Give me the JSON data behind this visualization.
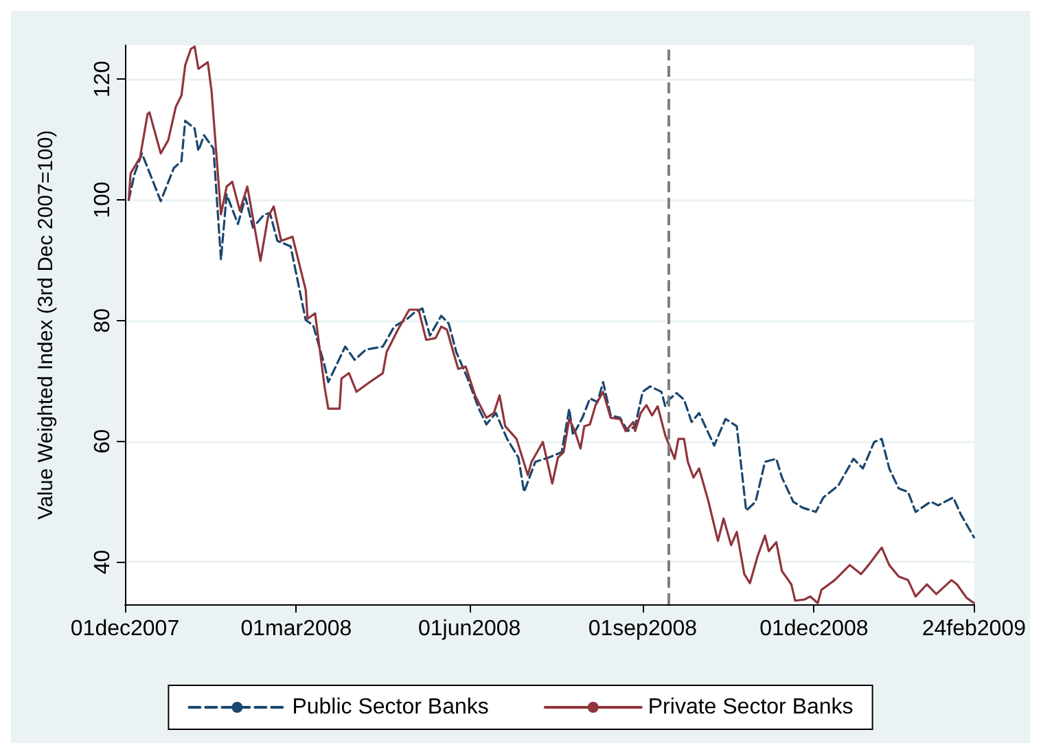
{
  "chart_data": {
    "type": "line",
    "ylabel": "Value Weighted Index (3rd Dec 2007=100)",
    "xlim": [
      "2007-12-01",
      "2009-02-24"
    ],
    "xticks": [
      {
        "value": "2007-12-01",
        "label": "01dec2007"
      },
      {
        "value": "2008-03-01",
        "label": "01mar2008"
      },
      {
        "value": "2008-06-01",
        "label": "01jun2008"
      },
      {
        "value": "2008-09-01",
        "label": "01sep2008"
      },
      {
        "value": "2008-12-01",
        "label": "01dec2008"
      },
      {
        "value": "2009-02-24",
        "label": "24feb2009"
      }
    ],
    "ylim": [
      33,
      125.6
    ],
    "yticks": [
      40,
      60,
      80,
      100,
      120
    ],
    "grid": "y",
    "legend": "bottom",
    "ref_lines": [
      {
        "axis": "x",
        "value": "2008-09-15",
        "label": null,
        "color": "#7f7f7f",
        "line_style": "dashed"
      }
    ],
    "series": [
      {
        "name": "Public Sector Banks",
        "color": "#1a476f",
        "line_style": "dashed",
        "x": [
          "2007-12-03",
          "2007-12-06",
          "2007-12-10",
          "2007-12-20",
          "2007-12-27",
          "2007-12-31",
          "2008-01-02",
          "2008-01-07",
          "2008-01-09",
          "2008-01-12",
          "2008-01-17",
          "2008-01-21",
          "2008-01-24",
          "2008-01-30",
          "2008-02-03",
          "2008-02-07",
          "2008-02-13",
          "2008-02-16",
          "2008-02-20",
          "2008-02-27",
          "2008-03-06",
          "2008-03-10",
          "2008-03-16",
          "2008-03-18",
          "2008-03-27",
          "2008-04-01",
          "2008-04-07",
          "2008-04-16",
          "2008-04-22",
          "2008-04-29",
          "2008-05-03",
          "2008-05-07",
          "2008-05-11",
          "2008-05-17",
          "2008-05-21",
          "2008-05-25",
          "2008-05-31",
          "2008-06-06",
          "2008-06-10",
          "2008-06-15",
          "2008-06-21",
          "2008-06-27",
          "2008-06-30",
          "2008-07-06",
          "2008-07-13",
          "2008-07-20",
          "2008-07-24",
          "2008-07-26",
          "2008-07-31",
          "2008-08-04",
          "2008-08-08",
          "2008-08-11",
          "2008-08-15",
          "2008-08-20",
          "2008-08-24",
          "2008-08-28",
          "2008-09-01",
          "2008-09-05",
          "2008-09-11",
          "2008-09-13",
          "2008-09-15",
          "2008-09-19",
          "2008-09-23",
          "2008-09-27",
          "2008-10-01",
          "2008-10-09",
          "2008-10-15",
          "2008-10-21",
          "2008-10-26",
          "2008-10-31",
          "2008-11-05",
          "2008-11-11",
          "2008-11-14",
          "2008-11-20",
          "2008-11-25",
          "2008-12-02",
          "2008-12-06",
          "2008-12-14",
          "2008-12-22",
          "2008-12-27",
          "2009-01-02",
          "2009-01-06",
          "2009-01-10",
          "2009-01-15",
          "2009-01-20",
          "2009-01-24",
          "2009-02-01",
          "2009-02-05",
          "2009-02-13",
          "2009-02-17",
          "2009-02-24"
        ],
        "values": [
          100,
          104.2,
          107.7,
          99.8,
          105.3,
          106.4,
          113.1,
          111.8,
          108.1,
          110.7,
          108.5,
          90.1,
          100.9,
          96,
          100.4,
          95.4,
          97.6,
          97.8,
          93.2,
          92.3,
          80.1,
          79.2,
          72.6,
          69.8,
          75.7,
          73.5,
          75.2,
          75.7,
          79,
          80.3,
          81.4,
          82,
          77.5,
          80.8,
          79.5,
          74.8,
          70.4,
          65.4,
          62.8,
          64.7,
          60.4,
          57.3,
          51.6,
          56.6,
          57.3,
          58.2,
          65.4,
          61,
          63.9,
          67.1,
          66.5,
          69.8,
          64.3,
          63.9,
          61.7,
          62.5,
          68.2,
          69.1,
          68.2,
          65.8,
          66.9,
          68,
          66.9,
          63.2,
          64.7,
          59.3,
          63.7,
          62.5,
          48.5,
          50,
          56.6,
          57.1,
          54,
          50,
          49,
          48.3,
          50.7,
          52.7,
          57.1,
          55.5,
          59.9,
          60.4,
          55.5,
          52.2,
          51.6,
          48.3,
          50,
          49.4,
          50.7,
          47.9,
          44.1
        ]
      },
      {
        "name": "Private Sector Banks",
        "color": "#90353b",
        "line_style": "solid",
        "x": [
          "2007-12-03",
          "2007-12-04",
          "2007-12-09",
          "2007-12-13",
          "2007-12-14",
          "2007-12-20",
          "2007-12-24",
          "2007-12-28",
          "2007-12-31",
          "2008-01-02",
          "2008-01-05",
          "2008-01-07",
          "2008-01-09",
          "2008-01-14",
          "2008-01-16",
          "2008-01-21",
          "2008-01-24",
          "2008-01-27",
          "2008-01-31",
          "2008-02-04",
          "2008-02-11",
          "2008-02-15",
          "2008-02-18",
          "2008-02-22",
          "2008-02-28",
          "2008-03-06",
          "2008-03-07",
          "2008-03-11",
          "2008-03-16",
          "2008-03-18",
          "2008-03-24",
          "2008-03-25",
          "2008-03-29",
          "2008-04-02",
          "2008-04-09",
          "2008-04-16",
          "2008-04-18",
          "2008-04-24",
          "2008-04-30",
          "2008-05-05",
          "2008-05-09",
          "2008-05-14",
          "2008-05-17",
          "2008-05-20",
          "2008-05-26",
          "2008-05-30",
          "2008-06-04",
          "2008-06-10",
          "2008-06-14",
          "2008-06-17",
          "2008-06-20",
          "2008-06-26",
          "2008-07-02",
          "2008-07-04",
          "2008-07-10",
          "2008-07-15",
          "2008-07-18",
          "2008-07-21",
          "2008-07-24",
          "2008-07-27",
          "2008-07-30",
          "2008-08-01",
          "2008-08-04",
          "2008-08-07",
          "2008-08-11",
          "2008-08-15",
          "2008-08-20",
          "2008-08-23",
          "2008-08-27",
          "2008-08-28",
          "2008-08-31",
          "2008-09-03",
          "2008-09-06",
          "2008-09-09",
          "2008-09-13",
          "2008-09-18",
          "2008-09-20",
          "2008-09-23",
          "2008-09-25",
          "2008-09-28",
          "2008-10-01",
          "2008-10-06",
          "2008-10-11",
          "2008-10-14",
          "2008-10-18",
          "2008-10-21",
          "2008-10-25",
          "2008-10-28",
          "2008-11-01",
          "2008-11-05",
          "2008-11-07",
          "2008-11-11",
          "2008-11-14",
          "2008-11-19",
          "2008-11-21",
          "2008-11-26",
          "2008-11-29",
          "2008-12-03",
          "2008-12-05",
          "2008-12-12",
          "2008-12-20",
          "2008-12-26",
          "2008-12-30",
          "2009-01-06",
          "2009-01-10",
          "2009-01-15",
          "2009-01-20",
          "2009-01-24",
          "2009-01-30",
          "2009-02-04",
          "2009-02-12",
          "2009-02-15",
          "2009-02-20",
          "2009-02-24"
        ],
        "values": [
          100,
          104.4,
          107,
          114.2,
          114.5,
          107.7,
          109.9,
          115.4,
          117.3,
          122.3,
          125,
          125.4,
          121.7,
          122.8,
          118,
          97.6,
          102.2,
          103,
          98.2,
          102.2,
          89.9,
          97.2,
          98.9,
          93.2,
          93.9,
          85.1,
          80.3,
          81.2,
          69.1,
          65.4,
          65.4,
          70.4,
          71.3,
          68.2,
          69.8,
          71.3,
          74.8,
          78.5,
          81.8,
          81.8,
          76.8,
          77.1,
          79,
          78.5,
          72,
          72.4,
          67.6,
          63.9,
          64.7,
          67.6,
          62.5,
          60.4,
          54.4,
          56.6,
          59.9,
          53,
          57.3,
          58.2,
          63.7,
          61.7,
          58.8,
          62.5,
          62.8,
          66,
          68.2,
          63.9,
          63.7,
          61.7,
          63.2,
          61.7,
          64.7,
          66,
          64.3,
          65.8,
          61,
          57.1,
          60.4,
          60.4,
          56.6,
          54,
          55.5,
          50,
          43.5,
          47.2,
          42.8,
          45,
          38,
          36.5,
          40.9,
          44.4,
          41.8,
          43.3,
          38.5,
          36.3,
          33.6,
          33.8,
          34.3,
          33.2,
          35.4,
          37,
          39.5,
          38,
          39.5,
          42.4,
          39.5,
          37.6,
          37,
          34.3,
          36.3,
          34.7,
          37,
          36.3,
          34.1,
          33.2
        ]
      }
    ]
  }
}
